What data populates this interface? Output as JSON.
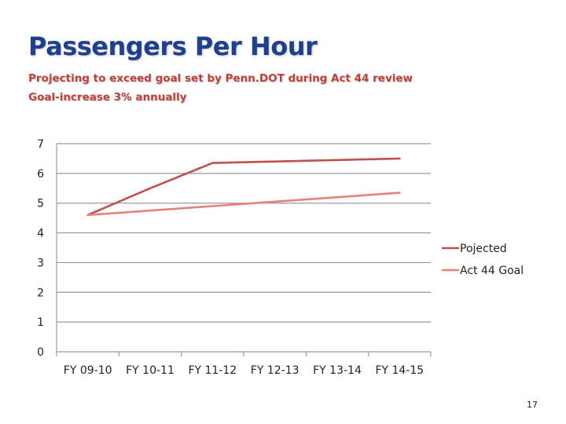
{
  "slide": {
    "title": "Passengers Per Hour",
    "subtitle_lines": [
      "Projecting to exceed goal set by Penn.DOT during Act 44 review",
      "Goal-increase 3% annually"
    ],
    "page_number": "17"
  },
  "colors": {
    "title": "#1f3f8f",
    "subtitle": "#c0413a",
    "grid": "#999999"
  },
  "chart_data": {
    "type": "line",
    "categories": [
      "FY 09-10",
      "FY 10-11",
      "FY 11-12",
      "FY 12-13",
      "FY 13-14",
      "FY 14-15"
    ],
    "series": [
      {
        "name": "Pojected",
        "values": [
          4.6,
          5.5,
          6.35,
          6.4,
          6.45,
          6.5
        ],
        "color": "#c0504d"
      },
      {
        "name": "Act 44 Goal",
        "values": [
          4.6,
          4.75,
          4.9,
          5.05,
          5.2,
          5.35
        ],
        "color": "#e8817a"
      }
    ],
    "ylim": [
      0,
      7
    ],
    "yticks": [
      0,
      1,
      2,
      3,
      4,
      5,
      6,
      7
    ],
    "grid": true,
    "legend_position": "right"
  }
}
